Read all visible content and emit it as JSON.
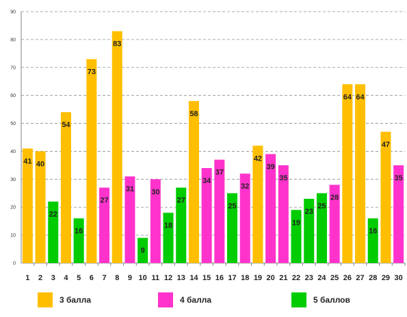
{
  "chart_data": {
    "type": "bar",
    "categories": [
      "1",
      "2",
      "3",
      "4",
      "5",
      "6",
      "7",
      "8",
      "9",
      "10",
      "11",
      "12",
      "13",
      "14",
      "15",
      "16",
      "17",
      "18",
      "19",
      "20",
      "21",
      "22",
      "23",
      "24",
      "25",
      "26",
      "27",
      "28",
      "29",
      "30"
    ],
    "values": [
      41,
      40,
      22,
      54,
      16,
      73,
      27,
      83,
      31,
      9,
      30,
      18,
      27,
      58,
      34,
      37,
      25,
      32,
      42,
      39,
      35,
      19,
      23,
      25,
      28,
      64,
      64,
      16,
      47,
      35
    ],
    "grades": [
      "3 балла",
      "3 балла",
      "5 баллов",
      "3 балла",
      "5 баллов",
      "3 балла",
      "4 балла",
      "3 балла",
      "4 балла",
      "5 баллов",
      "4 балла",
      "5 баллов",
      "5 баллов",
      "3 балла",
      "4 балла",
      "4 балла",
      "5 баллов",
      "4 балла",
      "3 балла",
      "4 балла",
      "4 балла",
      "5 баллов",
      "5 баллов",
      "5 баллов",
      "4 балла",
      "3 балла",
      "3 балла",
      "5 баллов",
      "3 балла",
      "4 балла"
    ],
    "ylim": [
      0,
      90
    ],
    "yticks": [
      0,
      10,
      20,
      30,
      40,
      50,
      60,
      70,
      80,
      90
    ],
    "grid": "horizontal dashed",
    "legend_placement": "bottom",
    "legend": [
      {
        "name": "3 балла",
        "color": "#ffbf00"
      },
      {
        "name": "4 балла",
        "color": "#ff33cc"
      },
      {
        "name": "5 баллов",
        "color": "#00cc00"
      }
    ]
  }
}
